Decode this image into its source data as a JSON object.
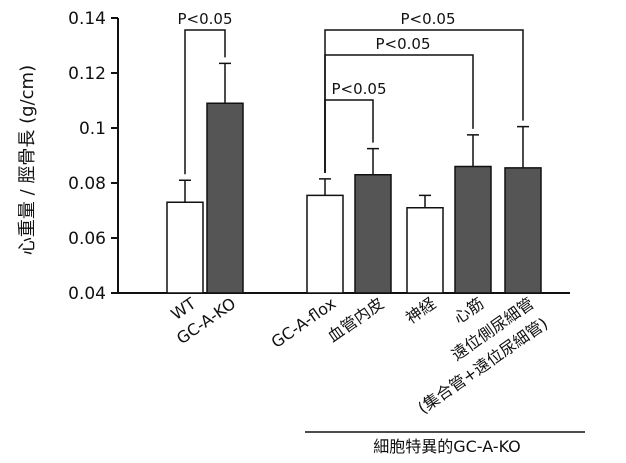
{
  "chart_data": {
    "type": "bar",
    "ylabel": "心重量 / 脛骨長 (g/cm)",
    "ylim": [
      0.04,
      0.14
    ],
    "yticks": [
      "0.04",
      "0.06",
      "0.08",
      "0.1",
      "0.12",
      "0.14"
    ],
    "xlabel": "",
    "grid": false,
    "group_label": "細胞特異的GC-A-KO",
    "categories": [
      {
        "label": "WT",
        "value": 0.073,
        "error": 0.008,
        "fill": "#ffffff"
      },
      {
        "label": "GC-A-KO",
        "value": 0.109,
        "error": 0.0145,
        "fill": "#555555"
      },
      {
        "label": "GC-A-flox",
        "value": 0.0755,
        "error": 0.006,
        "fill": "#ffffff"
      },
      {
        "label": "血管内皮",
        "value": 0.083,
        "error": 0.0095,
        "fill": "#555555"
      },
      {
        "label": "神経",
        "value": 0.071,
        "error": 0.0045,
        "fill": "#ffffff"
      },
      {
        "label": "心筋",
        "value": 0.086,
        "error": 0.0115,
        "fill": "#555555"
      },
      {
        "label": "遠位側尿細管",
        "sublabel": "(集合管+遠位尿細管)",
        "value": 0.0855,
        "error": 0.015,
        "fill": "#555555"
      }
    ],
    "significance": [
      {
        "text": "P<0.05",
        "from": 0,
        "to": 1
      },
      {
        "text": "P<0.05",
        "from": 2,
        "to": 3
      },
      {
        "text": "P<0.05",
        "from": 2,
        "to": 5
      },
      {
        "text": "P<0.05",
        "from": 2,
        "to": 6
      }
    ]
  }
}
